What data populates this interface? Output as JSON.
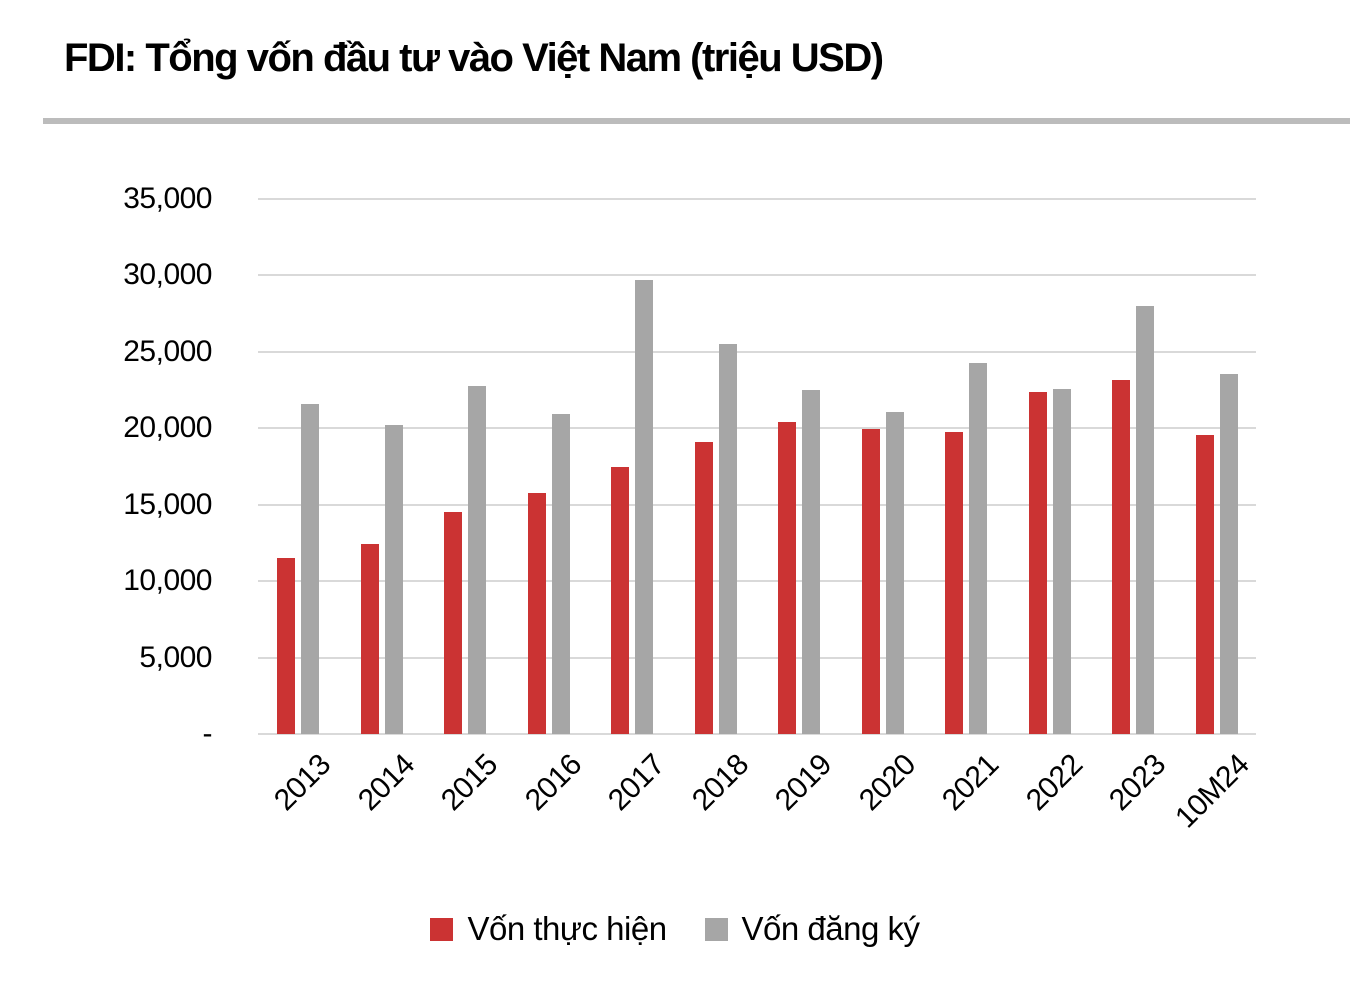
{
  "title": "FDI: Tổng vốn đầu tư vào Việt Nam (triệu USD)",
  "colors": {
    "realized_bar": "#cb3333",
    "registered_bar": "#a6a6a6",
    "gridline": "#d9d9d9",
    "title_divider": "#bcbcbc",
    "text": "#000000"
  },
  "chart_data": {
    "type": "bar",
    "title": "FDI: Tổng vốn đầu tư vào Việt Nam (triệu USD)",
    "categories": [
      "2013",
      "2014",
      "2015",
      "2016",
      "2017",
      "2018",
      "2019",
      "2020",
      "2021",
      "2022",
      "2023",
      "10M24"
    ],
    "series": [
      {
        "id": "von-thuc-hien",
        "name": "Vốn thực hiện",
        "color": "#cb3333",
        "values": [
          11500,
          12450,
          14500,
          15800,
          17500,
          19100,
          20380,
          19980,
          19740,
          22400,
          23180,
          19580
        ]
      },
      {
        "id": "von-dang-ky",
        "name": "Vốn đăng ký",
        "color": "#a6a6a6",
        "values": [
          21600,
          20230,
          22760,
          20940,
          29700,
          25500,
          22500,
          21060,
          24300,
          22570,
          28000,
          23580
        ]
      }
    ],
    "ylim": [
      0,
      35000
    ],
    "ytick_step": 5000,
    "ytick_labels": [
      "-",
      "5,000",
      "10,000",
      "15,000",
      "20,000",
      "25,000",
      "30,000",
      "35,000"
    ],
    "xlabel": "",
    "ylabel": "",
    "grid": true,
    "x_label_rotation_deg": 45,
    "legend_position": "bottom"
  }
}
